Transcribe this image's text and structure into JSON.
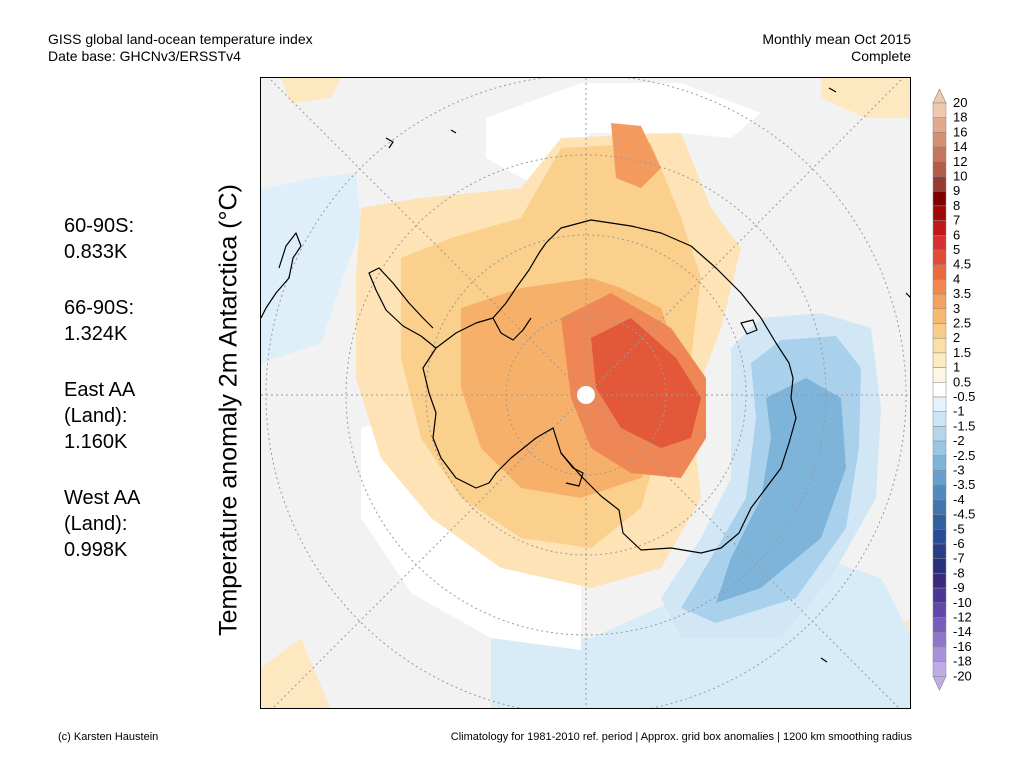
{
  "header": {
    "title_line1": "GISS global land-ocean temperature index",
    "title_line2": "Date base: GHCNv3/ERSSTv4",
    "right_line1": "Monthly mean Oct 2015",
    "right_line2": "Complete"
  },
  "y_axis_label": "Temperature anomaly 2m Antarctica (°C)",
  "stats": [
    {
      "lines": [
        "60-90S:",
        "0.833K"
      ]
    },
    {
      "lines": [
        "66-90S:",
        "1.324K"
      ]
    },
    {
      "lines": [
        "East AA",
        "(Land):",
        "1.160K"
      ]
    },
    {
      "lines": [
        "West AA",
        "(Land):",
        "0.998K"
      ]
    }
  ],
  "colorbar": {
    "labels": [
      "20",
      "18",
      "16",
      "14",
      "12",
      "10",
      "9",
      "8",
      "7",
      "6",
      "5",
      "4.5",
      "4",
      "3.5",
      "3",
      "2.5",
      "2",
      "1.5",
      "1",
      "0.5",
      "-0.5",
      "-1",
      "-1.5",
      "-2",
      "-2.5",
      "-3",
      "-3.5",
      "-4",
      "-4.5",
      "-5",
      "-6",
      "-7",
      "-8",
      "-9",
      "-10",
      "-12",
      "-14",
      "-16",
      "-18",
      "-20"
    ],
    "colors": [
      "#f0c8b0",
      "#e3a98c",
      "#d58f72",
      "#c5755c",
      "#b05c48",
      "#963c30",
      "#800000",
      "#a00808",
      "#c01818",
      "#d83030",
      "#e34b35",
      "#ea6a40",
      "#f08850",
      "#f4a060",
      "#f7b870",
      "#f9cc88",
      "#fbdfa3",
      "#fdebc0",
      "#fef6e2",
      "#ffffff",
      "#e7f3fc",
      "#cde6f6",
      "#b2d6ed",
      "#98c6e4",
      "#7fb4da",
      "#679fce",
      "#528ac0",
      "#4075b0",
      "#3160a0",
      "#284d92",
      "#263f88",
      "#2a2f7c",
      "#3a2a80",
      "#4d3594",
      "#6347a8",
      "#7a5cbc",
      "#9075cc",
      "#a890da",
      "#c0abe6"
    ]
  },
  "map_legend": {
    "near_zero_color": "#f2f2f2",
    "no_data_color": "#ffffff",
    "coast_color": "#000000"
  },
  "footer": {
    "left": "(c) Karsten Haustein",
    "right": "Climatology for 1981-2010 ref. period | Approx. grid box anomalies | 1200 km smoothing radius"
  }
}
